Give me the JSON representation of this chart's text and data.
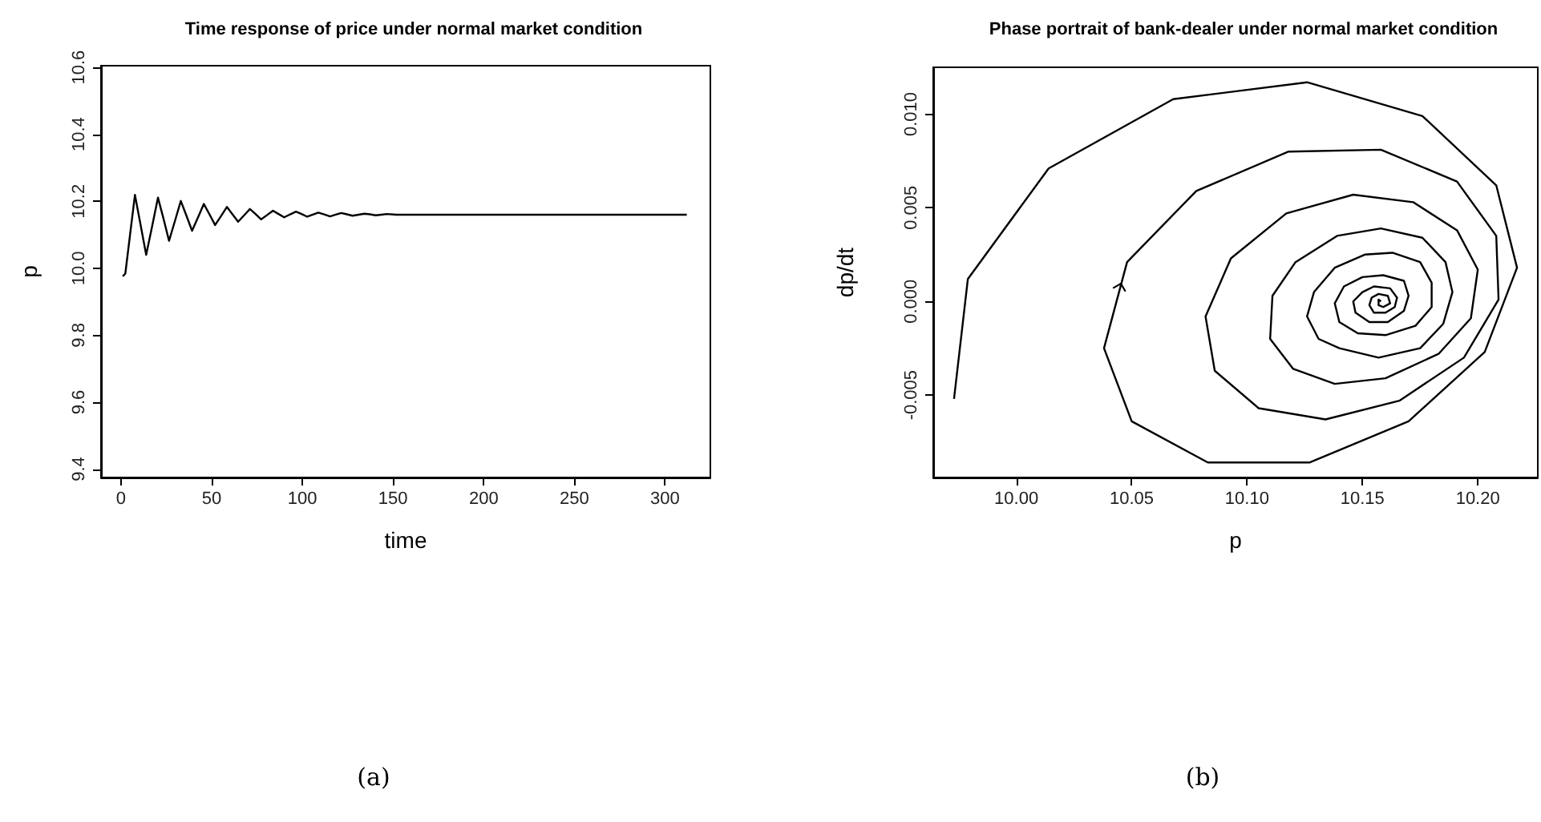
{
  "chart_data": [
    {
      "type": "line",
      "title": "Time response of price under normal market condition",
      "xlabel": "time",
      "ylabel": "p",
      "annotations": [
        "(a)"
      ],
      "x": [
        1,
        2.4,
        5,
        7.7,
        10.8,
        13.9,
        17.2,
        20.4,
        23.5,
        26.5,
        29.8,
        33.0,
        36.1,
        39.2,
        42.5,
        45.7,
        48.8,
        51.9,
        55.2,
        58.4,
        61.5,
        64.6,
        67.9,
        71.1,
        74.2,
        77.3,
        80.6,
        83.8,
        86.9,
        90.0,
        93.3,
        96.5,
        99.6,
        102.7,
        105.8,
        108.8,
        112.1,
        115.3,
        118.4,
        121.5,
        124.6,
        127.7,
        131.0,
        134.2,
        137.3,
        140.4,
        143.5,
        146.6,
        152,
        160,
        200,
        250,
        312
      ],
      "series": [
        {
          "color": "#000000",
          "values": [
            9.976,
            9.984,
            10.1,
            10.219,
            10.13,
            10.04,
            10.126,
            10.211,
            10.147,
            10.082,
            10.142,
            10.201,
            10.157,
            10.112,
            10.152,
            10.192,
            10.161,
            10.129,
            10.156,
            10.183,
            10.161,
            10.139,
            10.158,
            10.177,
            10.162,
            10.146,
            10.159,
            10.172,
            10.162,
            10.152,
            10.161,
            10.169,
            10.162,
            10.154,
            10.16,
            10.166,
            10.161,
            10.155,
            10.16,
            10.165,
            10.161,
            10.157,
            10.16,
            10.163,
            10.161,
            10.158,
            10.16,
            10.162,
            10.16,
            10.16,
            10.16,
            10.16,
            10.16
          ]
        }
      ],
      "xlim": [
        -11,
        325
      ],
      "ylim": [
        9.375,
        10.605
      ],
      "xticks": [
        0,
        50,
        100,
        150,
        200,
        250,
        300
      ],
      "yticks": [
        {
          "value": 9.4,
          "label": "9.4"
        },
        {
          "value": 9.6,
          "label": "9.6"
        },
        {
          "value": 9.8,
          "label": "9.8"
        },
        {
          "value": 10,
          "label": "10.0"
        },
        {
          "value": 10.2,
          "label": "10.2"
        },
        {
          "value": 10.4,
          "label": "10.4"
        },
        {
          "value": 10.6,
          "label": "10.6"
        }
      ]
    },
    {
      "type": "line",
      "title": "Phase portrait of bank-dealer under normal market condition",
      "xlabel": "p",
      "ylabel": "dp/dt",
      "annotations": [
        "(b)"
      ],
      "series": [
        {
          "color": "#000000",
          "x": [
            9.973,
            9.979,
            10.014,
            10.068,
            10.126,
            10.176,
            10.208,
            10.217,
            10.203,
            10.17,
            10.127,
            10.083,
            10.05,
            10.038,
            10.048,
            10.078,
            10.118,
            10.158,
            10.191,
            10.208,
            10.209,
            10.194,
            10.166,
            10.134,
            10.105,
            10.086,
            10.082,
            10.093,
            10.117,
            10.146,
            10.172,
            10.191,
            10.2,
            10.197,
            10.183,
            10.16,
            10.138,
            10.12,
            10.11,
            10.111,
            10.121,
            10.139,
            10.158,
            10.176,
            10.186,
            10.189,
            10.185,
            10.175,
            10.157,
            10.14,
            10.131,
            10.126,
            10.129,
            10.138,
            10.151,
            10.163,
            10.175,
            10.18,
            10.18,
            10.173,
            10.16,
            10.148,
            10.14,
            10.138,
            10.142,
            10.15,
            10.159,
            10.168,
            10.17,
            10.168,
            10.161,
            10.153,
            10.147,
            10.146,
            10.15,
            10.155,
            10.162,
            10.165,
            10.164,
            10.16,
            10.155,
            10.153,
            10.154,
            10.157,
            10.161,
            10.162,
            10.159,
            10.157,
            10.157,
            10.158
          ],
          "values": [
            -0.0052,
            0.0012,
            0.0071,
            0.0108,
            0.0117,
            0.0099,
            0.0062,
            0.0018,
            -0.0027,
            -0.0064,
            -0.0086,
            -0.0086,
            -0.0064,
            -0.0025,
            0.0021,
            0.0059,
            0.008,
            0.0081,
            0.0064,
            0.0035,
            0.0001,
            -0.003,
            -0.0053,
            -0.0063,
            -0.0057,
            -0.0037,
            -0.0008,
            0.0023,
            0.0047,
            0.0057,
            0.0053,
            0.0038,
            0.0017,
            -0.0009,
            -0.0028,
            -0.0041,
            -0.0044,
            -0.0036,
            -0.002,
            0.0003,
            0.0021,
            0.0035,
            0.0039,
            0.0034,
            0.0021,
            0.0005,
            -0.0012,
            -0.0025,
            -0.003,
            -0.0025,
            -0.002,
            -0.0008,
            0.0005,
            0.0018,
            0.0025,
            0.0026,
            0.0021,
            0.001,
            -0.0003,
            -0.0013,
            -0.0018,
            -0.0017,
            -0.0011,
            -0.0001,
            0.0008,
            0.0013,
            0.0014,
            0.0011,
            0.0003,
            -0.0005,
            -0.0011,
            -0.0011,
            -0.0006,
            0,
            0.0005,
            0.0008,
            0.0007,
            0.0002,
            -0.0003,
            -0.0006,
            -0.0006,
            -0.0002,
            0.0002,
            0.0004,
            0.0003,
            -0.0001,
            -0.0003,
            -0.0002,
            0.0001,
            0
          ]
        }
      ],
      "xlim": [
        9.964,
        10.226
      ],
      "ylim": [
        -0.0094,
        0.0125
      ],
      "xticks": [
        {
          "value": 10,
          "label": "10.00"
        },
        {
          "value": 10.05,
          "label": "10.05"
        },
        {
          "value": 10.1,
          "label": "10.10"
        },
        {
          "value": 10.15,
          "label": "10.15"
        },
        {
          "value": 10.2,
          "label": "10.20"
        }
      ],
      "yticks": [
        {
          "value": -0.005,
          "label": "-0.005"
        },
        {
          "value": 0,
          "label": "0.000"
        },
        {
          "value": 0.005,
          "label": "0.005"
        },
        {
          "value": 0.01,
          "label": "0.010"
        }
      ]
    }
  ]
}
